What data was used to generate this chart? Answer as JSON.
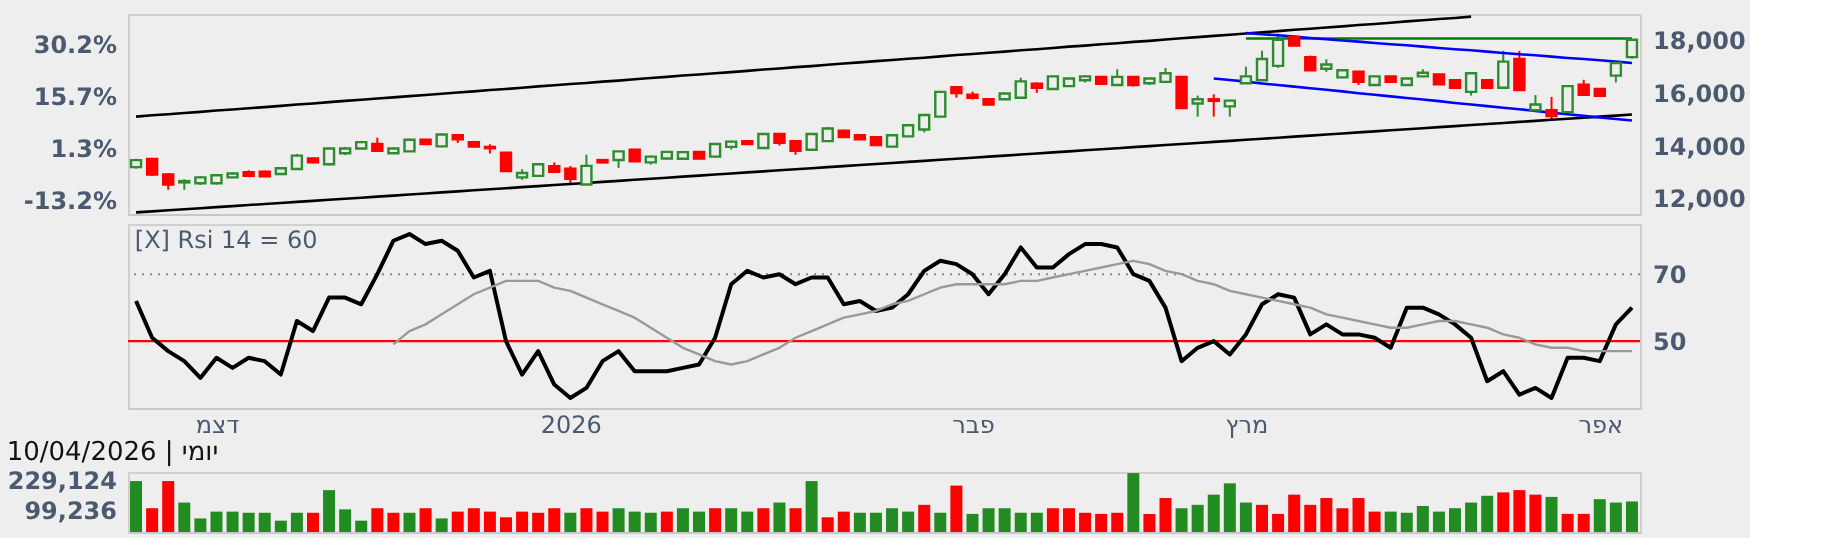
{
  "chart_data": [
    {
      "type": "candlestick",
      "categories": [
        null,
        null,
        null,
        null,
        null,
        null,
        null,
        null,
        null,
        null,
        null,
        null,
        null,
        null,
        null,
        null,
        null,
        null,
        null,
        null,
        null,
        null,
        null,
        null,
        null,
        null,
        null,
        null,
        null,
        null,
        null,
        null,
        null,
        null,
        null,
        null,
        null,
        null,
        null,
        null,
        null,
        null,
        null,
        null,
        null,
        null,
        null,
        null,
        null,
        null,
        null,
        null,
        null,
        null,
        null,
        null,
        null,
        null,
        null,
        null,
        null,
        null,
        null,
        null,
        null,
        null,
        null,
        null,
        null,
        null,
        null,
        null,
        null,
        null,
        null,
        null,
        null,
        null,
        null,
        null,
        null,
        null,
        null,
        null,
        null,
        null,
        null,
        null,
        null,
        null,
        null,
        null,
        null,
        null
      ],
      "ohlc": [
        [
          13182,
          13500,
          13120,
          13446
        ],
        [
          13492,
          13500,
          12850,
          12898
        ],
        [
          12900,
          12950,
          12320,
          12520
        ],
        [
          12600,
          12720,
          12320,
          12650
        ],
        [
          12570,
          12850,
          12500,
          12790
        ],
        [
          12570,
          12920,
          12520,
          12870
        ],
        [
          12790,
          12990,
          12760,
          12940
        ],
        [
          12990,
          13060,
          12800,
          12850
        ],
        [
          13010,
          13050,
          12800,
          12830
        ],
        [
          12920,
          13180,
          12880,
          13140
        ],
        [
          13110,
          13680,
          13080,
          13620
        ],
        [
          13510,
          13540,
          13330,
          13360
        ],
        [
          13290,
          13920,
          13250,
          13890
        ],
        [
          13710,
          13950,
          13640,
          13890
        ],
        [
          13890,
          14180,
          13860,
          14130
        ],
        [
          14060,
          14300,
          13760,
          13800
        ],
        [
          13710,
          13930,
          13680,
          13890
        ],
        [
          13780,
          14260,
          13760,
          14220
        ],
        [
          14220,
          14250,
          14040,
          14060
        ],
        [
          13970,
          14450,
          13940,
          14420
        ],
        [
          14390,
          14420,
          14100,
          14240
        ],
        [
          14130,
          14180,
          13930,
          13960
        ],
        [
          13950,
          14050,
          13700,
          13900
        ],
        [
          13730,
          13760,
          13010,
          13030
        ],
        [
          12790,
          13100,
          12700,
          12960
        ],
        [
          12850,
          13320,
          12820,
          13290
        ],
        [
          13220,
          13360,
          12950,
          13000
        ],
        [
          13120,
          13220,
          12580,
          12740
        ],
        [
          12520,
          13650,
          12500,
          13230
        ],
        [
          13450,
          13480,
          13330,
          13360
        ],
        [
          13450,
          13800,
          13150,
          13780
        ],
        [
          13840,
          13870,
          13380,
          13400
        ],
        [
          13360,
          13620,
          13280,
          13580
        ],
        [
          13510,
          13790,
          13480,
          13760
        ],
        [
          13500,
          13800,
          13470,
          13750
        ],
        [
          13760,
          13780,
          13480,
          13510
        ],
        [
          13580,
          14090,
          13550,
          14060
        ],
        [
          13950,
          14180,
          13850,
          14150
        ],
        [
          14170,
          14190,
          14040,
          14060
        ],
        [
          13910,
          14470,
          13880,
          14440
        ],
        [
          14440,
          14460,
          14000,
          14110
        ],
        [
          14170,
          14190,
          13650,
          13800
        ],
        [
          13840,
          14470,
          13820,
          14440
        ],
        [
          14170,
          14700,
          14140,
          14650
        ],
        [
          14570,
          14600,
          14300,
          14320
        ],
        [
          14390,
          14410,
          14210,
          14240
        ],
        [
          14320,
          14340,
          14000,
          14020
        ],
        [
          13960,
          14420,
          13940,
          14390
        ],
        [
          14350,
          14800,
          14320,
          14770
        ],
        [
          14610,
          15200,
          14500,
          15160
        ],
        [
          15100,
          16070,
          15080,
          16040
        ],
        [
          16220,
          16260,
          15820,
          16000
        ],
        [
          15930,
          16050,
          15750,
          15820
        ],
        [
          15760,
          15790,
          15530,
          15560
        ],
        [
          15760,
          16010,
          15740,
          15980
        ],
        [
          15820,
          16580,
          15800,
          16440
        ],
        [
          16350,
          16400,
          16000,
          16200
        ],
        [
          16150,
          16660,
          16130,
          16630
        ],
        [
          16260,
          16580,
          16240,
          16550
        ],
        [
          16480,
          16660,
          16400,
          16630
        ],
        [
          16610,
          16640,
          16300,
          16350
        ],
        [
          16300,
          16900,
          16280,
          16610
        ],
        [
          16610,
          16640,
          16250,
          16300
        ],
        [
          16370,
          16580,
          16300,
          16550
        ],
        [
          16420,
          16950,
          16400,
          16750
        ],
        [
          16610,
          16640,
          15400,
          15430
        ],
        [
          15600,
          15900,
          15100,
          15760
        ],
        [
          15760,
          15950,
          15100,
          15700
        ],
        [
          15490,
          15740,
          15100,
          15710
        ],
        [
          16370,
          17000,
          16340,
          16630
        ],
        [
          16480,
          17600,
          16450,
          17290
        ],
        [
          17030,
          18250,
          16950,
          18020
        ],
        [
          18130,
          18160,
          17780,
          17800
        ],
        [
          17360,
          17420,
          16840,
          16860
        ],
        [
          16920,
          17280,
          16800,
          17080
        ],
        [
          16590,
          16890,
          16560,
          16860
        ],
        [
          16810,
          16840,
          16300,
          16420
        ],
        [
          16300,
          16660,
          16270,
          16630
        ],
        [
          16630,
          16650,
          16380,
          16420
        ],
        [
          16300,
          16580,
          16270,
          16550
        ],
        [
          16630,
          16900,
          16600,
          16770
        ],
        [
          16700,
          16720,
          16310,
          16330
        ],
        [
          16480,
          16500,
          16180,
          16200
        ],
        [
          16040,
          16780,
          15900,
          16750
        ],
        [
          16480,
          16500,
          16180,
          16200
        ],
        [
          16200,
          17600,
          16170,
          17190
        ],
        [
          17290,
          17600,
          16090,
          16110
        ],
        [
          15340,
          15920,
          15310,
          15560
        ],
        [
          15340,
          15850,
          15000,
          15120
        ],
        [
          15270,
          16290,
          15240,
          16260
        ],
        [
          16310,
          16500,
          15900,
          15930
        ],
        [
          16150,
          16170,
          15870,
          15890
        ],
        [
          16660,
          17170,
          16400,
          17140
        ],
        [
          17360,
          18050,
          17300,
          18020
        ]
      ],
      "colors": [
        "#2e8b2e",
        "#ff0000",
        "#ff0000",
        "#2e8b2e",
        "#2e8b2e",
        "#2e8b2e",
        "#2e8b2e",
        "#ff0000",
        "#ff0000",
        "#2e8b2e",
        "#2e8b2e",
        "#ff0000",
        "#2e8b2e",
        "#2e8b2e",
        "#2e8b2e",
        "#ff0000",
        "#2e8b2e",
        "#2e8b2e",
        "#ff0000",
        "#2e8b2e",
        "#ff0000",
        "#ff0000",
        "#ff0000",
        "#ff0000",
        "#2e8b2e",
        "#2e8b2e",
        "#ff0000",
        "#ff0000",
        "#2e8b2e",
        "#ff0000",
        "#2e8b2e",
        "#ff0000",
        "#2e8b2e",
        "#2e8b2e",
        "#2e8b2e",
        "#ff0000",
        "#2e8b2e",
        "#2e8b2e",
        "#ff0000",
        "#2e8b2e",
        "#ff0000",
        "#ff0000",
        "#2e8b2e",
        "#2e8b2e",
        "#ff0000",
        "#ff0000",
        "#ff0000",
        "#2e8b2e",
        "#2e8b2e",
        "#2e8b2e",
        "#2e8b2e",
        "#ff0000",
        "#ff0000",
        "#ff0000",
        "#2e8b2e",
        "#2e8b2e",
        "#ff0000",
        "#2e8b2e",
        "#2e8b2e",
        "#2e8b2e",
        "#ff0000",
        "#2e8b2e",
        "#ff0000",
        "#2e8b2e",
        "#2e8b2e",
        "#ff0000",
        "#2e8b2e",
        "#ff0000",
        "#2e8b2e",
        "#2e8b2e",
        "#2e8b2e",
        "#2e8b2e",
        "#ff0000",
        "#ff0000",
        "#2e8b2e",
        "#2e8b2e",
        "#ff0000",
        "#2e8b2e",
        "#ff0000",
        "#2e8b2e",
        "#2e8b2e",
        "#ff0000",
        "#ff0000",
        "#2e8b2e",
        "#ff0000",
        "#2e8b2e",
        "#ff0000",
        "#2e8b2e",
        "#ff0000",
        "#2e8b2e",
        "#ff0000",
        "#ff0000",
        "#2e8b2e",
        "#2e8b2e"
      ],
      "series": [
        {
          "type": "line",
          "color": "#000000",
          "values": [
            15100,
            15150,
            15190,
            15240,
            15280,
            15330,
            15370,
            15420,
            15460,
            15510,
            15560,
            15600,
            15650,
            15700,
            15740,
            15790,
            15830,
            15880,
            15920,
            15970,
            16020,
            16060,
            16110,
            16150,
            16200,
            16250,
            16290,
            16340,
            16380,
            16430,
            16470,
            16520,
            16570,
            16610,
            16660,
            16700,
            16750,
            16790,
            16840,
            16890,
            16930,
            16980,
            17020,
            17070,
            17120,
            17160,
            17210,
            17250,
            17300,
            17340,
            17390,
            17440,
            17480,
            17530,
            17570,
            17620,
            17660,
            17710,
            17760,
            17800,
            17850,
            17890,
            17940,
            17980,
            18030,
            18080,
            18120,
            18170,
            18210,
            18260,
            18300,
            18350,
            18400,
            18440,
            18490,
            18530,
            18580,
            18620,
            18670,
            18720,
            18760,
            18810,
            18850,
            18900,
            null,
            null,
            null,
            null,
            null,
            null,
            null,
            null,
            null,
            null
          ]
        },
        {
          "type": "line",
          "color": "#000000",
          "values": [
            11460,
            11500,
            11540,
            11580,
            11620,
            11660,
            11700,
            11740,
            11780,
            11820,
            11860,
            11900,
            11940,
            11980,
            12020,
            12060,
            12100,
            12140,
            12180,
            12220,
            12260,
            12300,
            12340,
            12380,
            12420,
            12460,
            12500,
            12540,
            12580,
            12620,
            12660,
            12700,
            12740,
            12780,
            12820,
            12860,
            12900,
            12940,
            12980,
            13020,
            13060,
            13100,
            13140,
            13180,
            13220,
            13260,
            13300,
            13340,
            13380,
            13420,
            13460,
            13500,
            13540,
            13580,
            13620,
            13660,
            13700,
            13740,
            13780,
            13820,
            13860,
            13900,
            13940,
            13980,
            14020,
            14060,
            14100,
            14140,
            14180,
            14220,
            14260,
            14300,
            14340,
            14380,
            14420,
            14460,
            14500,
            14540,
            14580,
            14620,
            14660,
            14700,
            14740,
            14780,
            14820,
            14860,
            14900,
            14940,
            14980,
            15020,
            15060,
            15100,
            15140,
            15180
          ]
        },
        {
          "type": "line",
          "color": "#008000",
          "values": [
            null,
            null,
            null,
            null,
            null,
            null,
            null,
            null,
            null,
            null,
            null,
            null,
            null,
            null,
            null,
            null,
            null,
            null,
            null,
            null,
            null,
            null,
            null,
            null,
            null,
            null,
            null,
            null,
            null,
            null,
            null,
            null,
            null,
            null,
            null,
            null,
            null,
            null,
            null,
            null,
            null,
            null,
            null,
            null,
            null,
            null,
            null,
            null,
            null,
            null,
            null,
            null,
            null,
            null,
            null,
            null,
            null,
            null,
            null,
            null,
            null,
            null,
            null,
            null,
            null,
            null,
            null,
            null,
            null,
            18070,
            18070,
            18070,
            18070,
            18070,
            18070,
            18070,
            18070,
            18070,
            18070,
            18070,
            18070,
            18070,
            18070,
            18070,
            18070,
            18070,
            18070,
            18070,
            18070,
            18070,
            18070,
            18070,
            18070,
            18070
          ]
        },
        {
          "type": "line",
          "color": "#0000ff",
          "values": [
            null,
            null,
            null,
            null,
            null,
            null,
            null,
            null,
            null,
            null,
            null,
            null,
            null,
            null,
            null,
            null,
            null,
            null,
            null,
            null,
            null,
            null,
            null,
            null,
            null,
            null,
            null,
            null,
            null,
            null,
            null,
            null,
            null,
            null,
            null,
            null,
            null,
            null,
            null,
            null,
            null,
            null,
            null,
            null,
            null,
            null,
            null,
            null,
            null,
            null,
            null,
            null,
            null,
            null,
            null,
            null,
            null,
            null,
            null,
            null,
            null,
            null,
            null,
            null,
            null,
            null,
            null,
            null,
            null,
            18280,
            18230,
            18190,
            18140,
            18090,
            18040,
            17990,
            17950,
            17900,
            17850,
            17810,
            17760,
            17710,
            17660,
            17620,
            17570,
            17520,
            17470,
            17430,
            17380,
            17330,
            17290,
            17240,
            17190,
            17140
          ]
        },
        {
          "type": "line",
          "color": "#0000ff",
          "values": [
            null,
            null,
            null,
            null,
            null,
            null,
            null,
            null,
            null,
            null,
            null,
            null,
            null,
            null,
            null,
            null,
            null,
            null,
            null,
            null,
            null,
            null,
            null,
            null,
            null,
            null,
            null,
            null,
            null,
            null,
            null,
            null,
            null,
            null,
            null,
            null,
            null,
            null,
            null,
            null,
            null,
            null,
            null,
            null,
            null,
            null,
            null,
            null,
            null,
            null,
            null,
            null,
            null,
            null,
            null,
            null,
            null,
            null,
            null,
            null,
            null,
            null,
            null,
            null,
            null,
            null,
            null,
            16550,
            16490,
            16430,
            16360,
            16300,
            16240,
            16180,
            16120,
            16060,
            15990,
            15930,
            15870,
            15810,
            15750,
            15690,
            15620,
            15560,
            15500,
            15440,
            15380,
            15320,
            15250,
            15190,
            15130,
            15070,
            15010,
            14950
          ]
        }
      ],
      "ylim": [
        11400,
        19000
      ],
      "yticks": [
        {
          "value": 12000,
          "label": "12,000"
        },
        {
          "value": 14000,
          "label": "14,000"
        },
        {
          "value": 16000,
          "label": "16,000"
        },
        {
          "value": 18000,
          "label": "18,000"
        }
      ],
      "y2lim": [
        -17.1,
        38.5
      ],
      "y2ticks": [
        {
          "value": 30.2,
          "label": "30.2%"
        },
        {
          "value": 15.7,
          "label": "15.7%"
        },
        {
          "value": 1.3,
          "label": "1.3%"
        },
        {
          "value": -13.2,
          "label": "-13.2%"
        }
      ],
      "tick_labels": "y"
    },
    {
      "type": "line",
      "title": "[X] Rsi 14 = 60",
      "categories": [
        null,
        null,
        null,
        null,
        null,
        "דצמ",
        null,
        null,
        null,
        null,
        null,
        null,
        null,
        null,
        null,
        null,
        null,
        null,
        null,
        null,
        null,
        null,
        null,
        null,
        null,
        null,
        null,
        "2026",
        null,
        null,
        null,
        null,
        null,
        null,
        null,
        null,
        null,
        null,
        null,
        null,
        null,
        null,
        null,
        null,
        null,
        null,
        null,
        null,
        null,
        null,
        null,
        null,
        "פבר",
        null,
        null,
        null,
        null,
        null,
        null,
        null,
        null,
        null,
        null,
        null,
        null,
        null,
        null,
        null,
        null,
        "מרץ",
        null,
        null,
        null,
        null,
        null,
        null,
        null,
        null,
        null,
        null,
        null,
        null,
        null,
        null,
        null,
        null,
        null,
        null,
        null,
        null,
        null,
        "אפר",
        null,
        null
      ],
      "series": [
        {
          "color": "#000000",
          "values": [
            62,
            51,
            47,
            44,
            39,
            45,
            42,
            45,
            44,
            40,
            56,
            53,
            63,
            63,
            61,
            70,
            80,
            82,
            79,
            80,
            77,
            69,
            71,
            50,
            40,
            47,
            37,
            33,
            36,
            44,
            47,
            41,
            41,
            41,
            42,
            43,
            51,
            67,
            71,
            69,
            70,
            67,
            69,
            69,
            61,
            62,
            59,
            60,
            64,
            71,
            74,
            73,
            70,
            64,
            70,
            78,
            72,
            72,
            76,
            79,
            79,
            78,
            70,
            68,
            60,
            44,
            48,
            50,
            46,
            52,
            61,
            64,
            63,
            52,
            55,
            52,
            52,
            51,
            48,
            60,
            60,
            58,
            55,
            51,
            38,
            41,
            34,
            36,
            33,
            45,
            45,
            44,
            55,
            60
          ]
        },
        {
          "color": "#999999",
          "values": [
            null,
            null,
            null,
            null,
            null,
            null,
            null,
            null,
            null,
            null,
            null,
            null,
            null,
            null,
            null,
            null,
            49,
            53,
            55,
            58,
            61,
            64,
            66,
            68,
            68,
            68,
            66,
            65,
            63,
            61,
            59,
            57,
            54,
            51,
            48,
            46,
            44,
            43,
            44,
            46,
            48,
            51,
            53,
            55,
            57,
            58,
            59,
            61,
            62,
            64,
            66,
            67,
            67,
            67,
            67,
            68,
            68,
            69,
            70,
            71,
            72,
            73,
            74,
            73,
            71,
            70,
            68,
            67,
            65,
            64,
            63,
            62,
            61,
            60,
            58,
            57,
            56,
            55,
            54,
            54,
            55,
            56,
            56,
            55,
            54,
            52,
            51,
            49,
            48,
            48,
            47,
            47,
            47,
            47
          ]
        }
      ],
      "ref_lines": [
        {
          "axis": "y",
          "value": 70,
          "color": "#999999",
          "line_style": "dotted"
        },
        {
          "axis": "y",
          "value": 50,
          "color": "#ff0000",
          "line_style": "solid"
        }
      ],
      "ylim": [
        30,
        85
      ],
      "yticks": [
        70,
        50
      ]
    },
    {
      "type": "bar",
      "categories": [
        null,
        null,
        null,
        null,
        null,
        null,
        null,
        null,
        null,
        null,
        null,
        null,
        null,
        null,
        null,
        null,
        null,
        null,
        null,
        null,
        null,
        null,
        null,
        null,
        null,
        null,
        null,
        null,
        null,
        null,
        null,
        null,
        null,
        null,
        null,
        null,
        null,
        null,
        null,
        null,
        null,
        null,
        null,
        null,
        null,
        null,
        null,
        null,
        null,
        null,
        null,
        null,
        null,
        null,
        null,
        null,
        null,
        null,
        null,
        null,
        null,
        null,
        null,
        null,
        null,
        null,
        null,
        null,
        null,
        null,
        null,
        null,
        null,
        null,
        null,
        null,
        null,
        null,
        null,
        null,
        null,
        null,
        null,
        null,
        null,
        null,
        null,
        null,
        null,
        null,
        null,
        null,
        null,
        null
      ],
      "values": [
        225000,
        105000,
        225000,
        130000,
        60000,
        90000,
        90000,
        85000,
        85000,
        50000,
        85000,
        85000,
        185000,
        100000,
        50000,
        105000,
        85000,
        85000,
        105000,
        60000,
        90000,
        105000,
        90000,
        65000,
        90000,
        85000,
        105000,
        85000,
        105000,
        90000,
        105000,
        90000,
        85000,
        90000,
        105000,
        90000,
        105000,
        105000,
        90000,
        105000,
        130000,
        105000,
        225000,
        65000,
        90000,
        85000,
        85000,
        105000,
        90000,
        120000,
        85000,
        205000,
        80000,
        105000,
        105000,
        85000,
        85000,
        105000,
        105000,
        85000,
        80000,
        85000,
        260000,
        80000,
        150000,
        105000,
        120000,
        165000,
        215000,
        130000,
        120000,
        80000,
        165000,
        120000,
        150000,
        105000,
        150000,
        90000,
        90000,
        85000,
        115000,
        90000,
        105000,
        130000,
        160000,
        175000,
        185000,
        165000,
        155000,
        80000,
        80000,
        145000,
        130000,
        135000
      ],
      "colors": [
        "#228b22",
        "#ff0000",
        "#ff0000",
        "#228b22",
        "#228b22",
        "#228b22",
        "#228b22",
        "#228b22",
        "#228b22",
        "#228b22",
        "#228b22",
        "#ff0000",
        "#228b22",
        "#228b22",
        "#228b22",
        "#ff0000",
        "#ff0000",
        "#228b22",
        "#ff0000",
        "#228b22",
        "#ff0000",
        "#ff0000",
        "#ff0000",
        "#ff0000",
        "#ff0000",
        "#ff0000",
        "#ff0000",
        "#228b22",
        "#ff0000",
        "#ff0000",
        "#228b22",
        "#228b22",
        "#228b22",
        "#ff0000",
        "#228b22",
        "#228b22",
        "#ff0000",
        "#228b22",
        "#228b22",
        "#ff0000",
        "#228b22",
        "#ff0000",
        "#228b22",
        "#ff0000",
        "#ff0000",
        "#228b22",
        "#228b22",
        "#228b22",
        "#228b22",
        "#ff0000",
        "#228b22",
        "#ff0000",
        "#228b22",
        "#228b22",
        "#228b22",
        "#228b22",
        "#228b22",
        "#ff0000",
        "#ff0000",
        "#ff0000",
        "#ff0000",
        "#ff0000",
        "#228b22",
        "#ff0000",
        "#ff0000",
        "#228b22",
        "#228b22",
        "#228b22",
        "#228b22",
        "#228b22",
        "#ff0000",
        "#ff0000",
        "#ff0000",
        "#ff0000",
        "#ff0000",
        "#ff0000",
        "#ff0000",
        "#ff0000",
        "#228b22",
        "#228b22",
        "#228b22",
        "#228b22",
        "#228b22",
        "#228b22",
        "#228b22",
        "#ff0000",
        "#ff0000",
        "#ff0000",
        "#228b22",
        "#ff0000",
        "#ff0000",
        "#228b22",
        "#228b22",
        "#228b22"
      ],
      "ylim": [
        0,
        265000
      ],
      "yticks": [
        {
          "value": 229124,
          "label": "229,124"
        },
        {
          "value": 99236,
          "label": "99,236"
        }
      ],
      "tick_labels": "y",
      "annotations": [
        "יומי | 10/04/2026"
      ]
    }
  ]
}
